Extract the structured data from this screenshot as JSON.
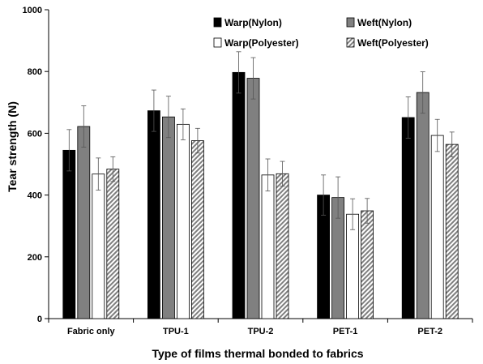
{
  "chart_data": {
    "type": "bar",
    "title": "",
    "xlabel": "Type of films thermal bonded to fabrics",
    "ylabel": "Tear strength (N)",
    "ylim": [
      0,
      1000
    ],
    "yticks": [
      0,
      200,
      400,
      600,
      800,
      1000
    ],
    "grid": false,
    "legend_position": "top-right",
    "categories": [
      "Fabric only",
      "TPU-1",
      "TPU-2",
      "PET-1",
      "PET-2"
    ],
    "series": [
      {
        "name": "Warp(Nylon)",
        "fill": "#000000",
        "pattern": "solid",
        "values": [
          545,
          673,
          797,
          400,
          651
        ],
        "errors": [
          67,
          67,
          67,
          65,
          67
        ]
      },
      {
        "name": "Weft(Nylon)",
        "fill": "#808080",
        "pattern": "solid",
        "values": [
          622,
          653,
          778,
          392,
          732
        ],
        "errors": [
          67,
          67,
          67,
          67,
          67
        ]
      },
      {
        "name": "Warp(Polyester)",
        "fill": "#ffffff",
        "pattern": "solid",
        "values": [
          468,
          629,
          465,
          338,
          593
        ],
        "errors": [
          52,
          50,
          52,
          50,
          52
        ]
      },
      {
        "name": "Weft(Polyester)",
        "fill": "#bfbfbf",
        "pattern": "hatch",
        "values": [
          484,
          576,
          469,
          349,
          564
        ],
        "errors": [
          40,
          40,
          40,
          40,
          40
        ]
      }
    ]
  }
}
